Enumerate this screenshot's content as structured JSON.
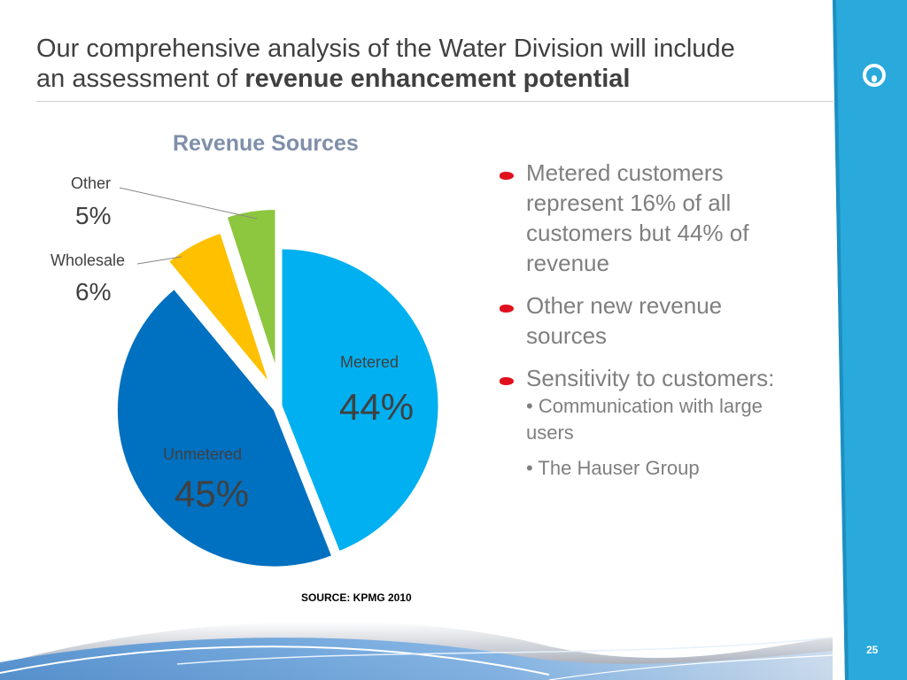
{
  "slide": {
    "title_line1": "Our comprehensive analysis of the Water Division will include",
    "title_line2_prefix": "an assessment of ",
    "title_line2_bold": "revenue enhancement potential",
    "page_number": "25",
    "logo_icon": "circle-logo-icon",
    "accent_color": "#29a9dc"
  },
  "chart_data": {
    "type": "pie",
    "title": "Revenue Sources",
    "slices": [
      {
        "label": "Metered",
        "value": 44,
        "display": "44%",
        "color": "#00B0F0"
      },
      {
        "label": "Unmetered",
        "value": 45,
        "display": "45%",
        "color": "#0070C0"
      },
      {
        "label": "Wholesale",
        "value": 6,
        "display": "6%",
        "color": "#FFC000"
      },
      {
        "label": "Other",
        "value": 5,
        "display": "5%",
        "color": "#8DC63F"
      }
    ],
    "source": "SOURCE:  KPMG 2010"
  },
  "bullets": [
    {
      "text": "Metered customers represent 16% of all customers but 44% of revenue"
    },
    {
      "text": "Other new revenue sources"
    },
    {
      "text": "Sensitivity to customers:",
      "sub": [
        "• Communication with large users",
        "• The Hauser Group"
      ]
    }
  ]
}
